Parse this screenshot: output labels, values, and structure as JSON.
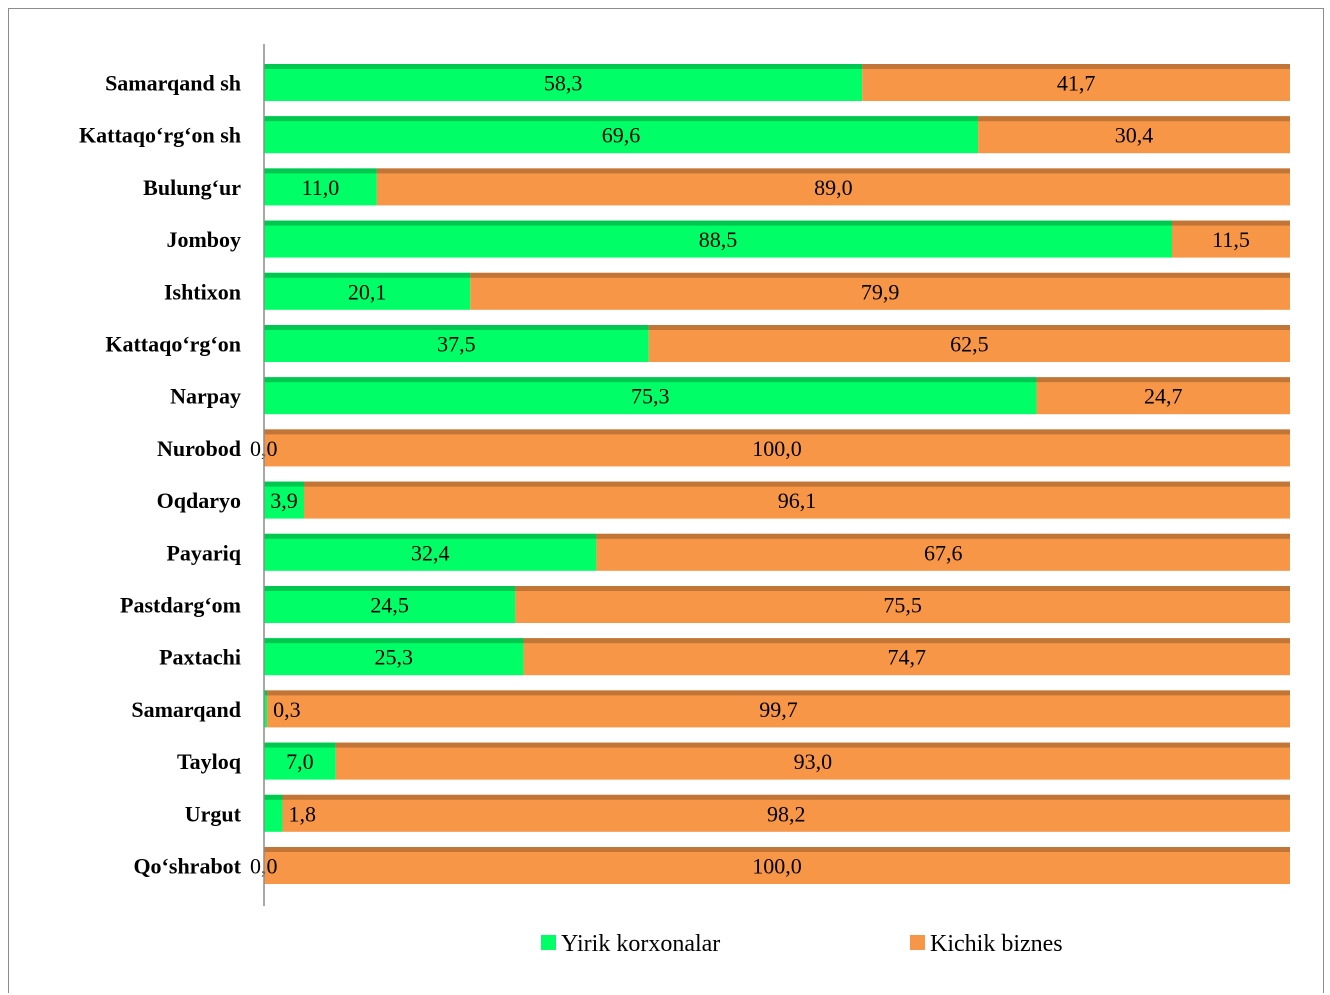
{
  "chart_data": {
    "type": "bar",
    "orientation": "horizontal",
    "stacked": "percent",
    "categories": [
      "Samarqand sh",
      "Kattaqo‘rg‘on sh",
      "Bulung‘ur",
      "Jomboy",
      "Ishtixon",
      "Kattaqo‘rg‘on",
      "Narpay",
      "Nurobod",
      "Oqdaryo",
      "Payariq",
      "Pastdarg‘om",
      "Paxtachi",
      "Samarqand",
      "Tayloq",
      "Urgut",
      "Qo‘shrabot"
    ],
    "series": [
      {
        "name": "Yirik korxonalar",
        "color": "#00ff66",
        "values": [
          58.3,
          69.6,
          11.0,
          88.5,
          20.1,
          37.5,
          75.3,
          0.0,
          3.9,
          32.4,
          24.5,
          25.3,
          0.3,
          7.0,
          1.8,
          0.0
        ],
        "labels": [
          "58,3",
          "69,6",
          "11,0",
          "88,5",
          "20,1",
          "37,5",
          "75,3",
          "0,0",
          "3,9",
          "32,4",
          "24,5",
          "25,3",
          "0,3",
          "7,0",
          "1,8",
          "0,0"
        ]
      },
      {
        "name": "Kichik biznes",
        "color": "#f79646",
        "values": [
          41.7,
          30.4,
          89.0,
          11.5,
          79.9,
          62.5,
          24.7,
          100.0,
          96.1,
          67.6,
          75.5,
          74.7,
          99.7,
          93.0,
          98.2,
          100.0
        ],
        "labels": [
          "41,7",
          "30,4",
          "89,0",
          "11,5",
          "79,9",
          "62,5",
          "24,7",
          "100,0",
          "96,1",
          "67,6",
          "75,5",
          "74,7",
          "99,7",
          "93,0",
          "98,2",
          "100,0"
        ]
      }
    ],
    "xlim": [
      0,
      100
    ],
    "grid": false,
    "legend_position": "bottom"
  }
}
